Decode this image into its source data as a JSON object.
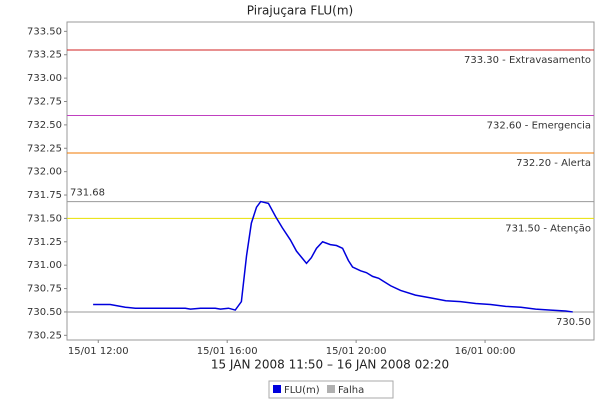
{
  "chart_data": {
    "type": "line",
    "title": "Pirajuçara FLU(m)",
    "x_label": "15 JAN 2008 11:50 – 16 JAN 2008 02:20",
    "x": [
      11.84,
      12.37,
      12.84,
      13.15,
      13.61,
      14.08,
      14.7,
      14.86,
      15.17,
      15.63,
      15.79,
      16.04,
      16.25,
      16.44,
      16.6,
      16.75,
      16.91,
      17.04,
      17.28,
      17.5,
      17.71,
      17.96,
      18.15,
      18.34,
      18.46,
      18.61,
      18.77,
      18.96,
      19.2,
      19.39,
      19.58,
      19.76,
      19.89,
      20.14,
      20.32,
      20.51,
      20.7,
      21.07,
      21.38,
      21.84,
      22.31,
      22.78,
      23.24,
      23.71,
      24.17,
      24.64,
      25.11,
      25.57,
      26.04,
      26.5,
      26.72
    ],
    "series": [
      {
        "name": "FLU(m)",
        "color": "#0000dd",
        "values": [
          730.58,
          730.58,
          730.55,
          730.54,
          730.54,
          730.54,
          730.54,
          730.53,
          730.54,
          730.54,
          730.53,
          730.54,
          730.52,
          730.61,
          731.1,
          731.45,
          731.62,
          731.68,
          731.66,
          731.52,
          731.4,
          731.27,
          731.15,
          731.07,
          731.02,
          731.08,
          731.18,
          731.25,
          731.22,
          731.21,
          731.18,
          731.05,
          730.98,
          730.94,
          730.92,
          730.88,
          730.86,
          730.78,
          730.73,
          730.68,
          730.65,
          730.62,
          730.61,
          730.59,
          730.58,
          730.56,
          730.55,
          730.53,
          730.52,
          730.51,
          730.5
        ]
      },
      {
        "name": "Falha",
        "color": "#b0b0b0",
        "values": [
          null,
          null,
          null,
          null,
          null,
          null,
          null,
          null,
          null,
          null,
          null,
          null,
          null,
          null,
          null,
          null,
          null,
          null,
          null,
          null,
          null,
          null,
          null,
          null,
          null,
          null,
          null,
          null,
          null,
          null,
          null,
          null,
          null,
          null,
          null,
          null,
          null,
          null,
          null,
          null,
          null,
          null,
          null,
          null,
          null,
          null,
          null,
          null,
          null,
          null,
          null
        ]
      }
    ],
    "xlim": [
      11.03,
      27.38
    ],
    "xticks": [
      {
        "value": 12,
        "label": "15/01 12:00"
      },
      {
        "value": 16,
        "label": "15/01 16:00"
      },
      {
        "value": 20,
        "label": "15/01 20:00"
      },
      {
        "value": 24,
        "label": "16/01 00:00"
      }
    ],
    "ylim": [
      730.2,
      733.6
    ],
    "yticks": [
      730.25,
      {
        "value": 730.5,
        "label": "730.50"
      },
      730.75,
      {
        "value": 731,
        "label": "731.00"
      },
      731.25,
      {
        "value": 731.5,
        "label": "731.50"
      },
      731.75,
      {
        "value": 732,
        "label": "732.00"
      },
      732.25,
      {
        "value": 732.5,
        "label": "732.50"
      },
      732.75,
      {
        "value": 733,
        "label": "733.00"
      },
      733.25,
      {
        "value": 733.5,
        "label": "733.50"
      }
    ],
    "thresholds": [
      {
        "value": 733.3,
        "label": "733.30 - Extravasamento",
        "color": "#d02020",
        "side": "right"
      },
      {
        "value": 732.6,
        "label": "732.60 - Emergencia",
        "color": "#c040c0",
        "side": "right"
      },
      {
        "value": 732.2,
        "label": "732.20 - Alerta",
        "color": "#f07800",
        "side": "right"
      },
      {
        "value": 731.5,
        "label": "731.50 - Atenção",
        "color": "#e8e000",
        "side": "right"
      },
      {
        "value": 731.68,
        "label": "731.68",
        "color": "#999999",
        "side": "left"
      },
      {
        "value": 730.5,
        "label": "730.50",
        "color": "#999999",
        "side": "right"
      }
    ]
  }
}
